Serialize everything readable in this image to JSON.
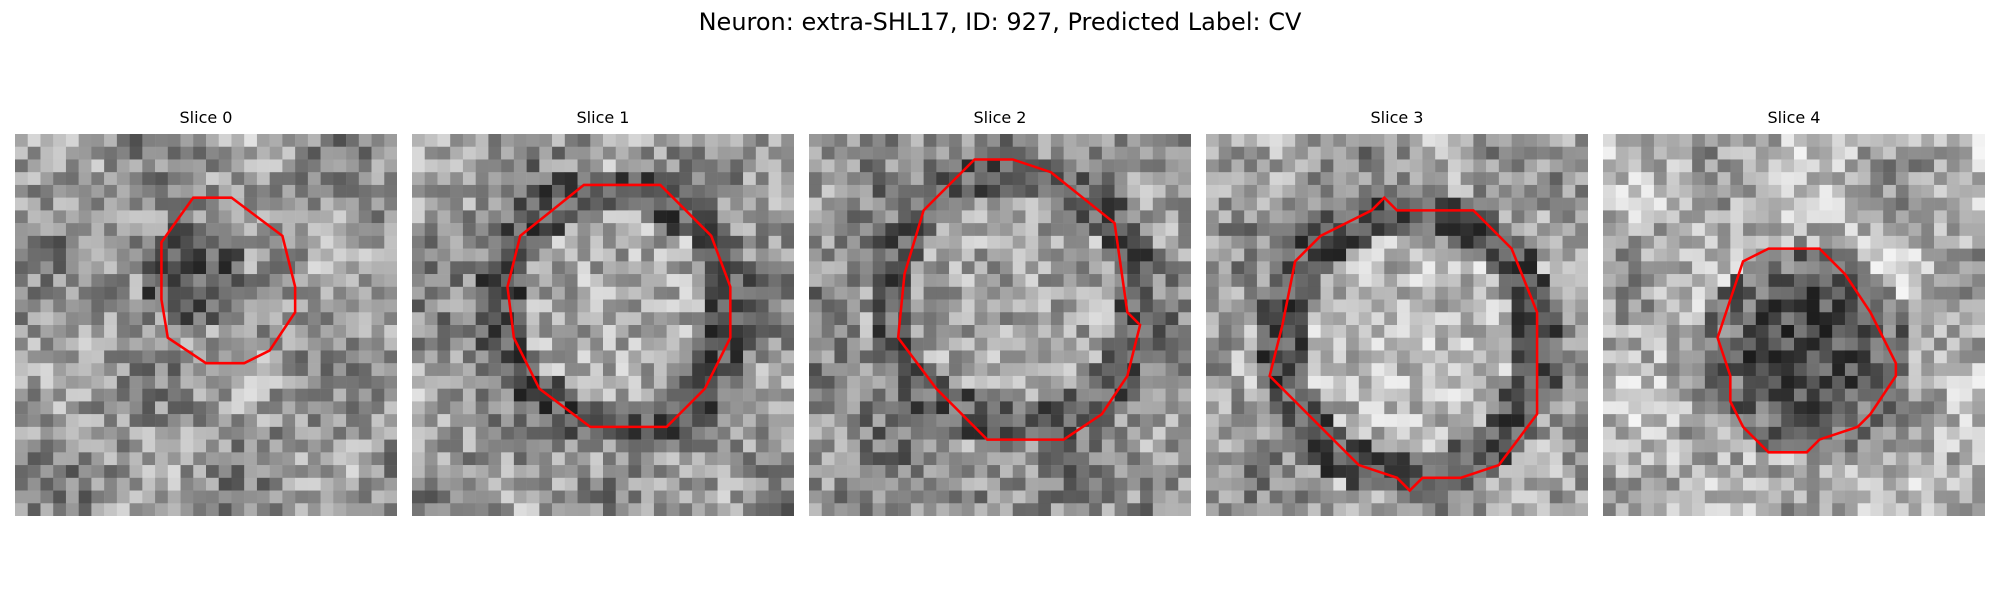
{
  "figure": {
    "title": "Neuron: extra-SHL17, ID: 927, Predicted Label: CV",
    "contour_color": "#ff0000",
    "colormap": "gray"
  },
  "panels": [
    {
      "title": "Slice 0",
      "outline": "small circular contour, upper-center"
    },
    {
      "title": "Slice 1",
      "outline": "large circular contour, center"
    },
    {
      "title": "Slice 2",
      "outline": "large circular contour, center"
    },
    {
      "title": "Slice 3",
      "outline": "large circular contour, lower-center"
    },
    {
      "title": "Slice 4",
      "outline": "medium circular contour, center"
    }
  ]
}
